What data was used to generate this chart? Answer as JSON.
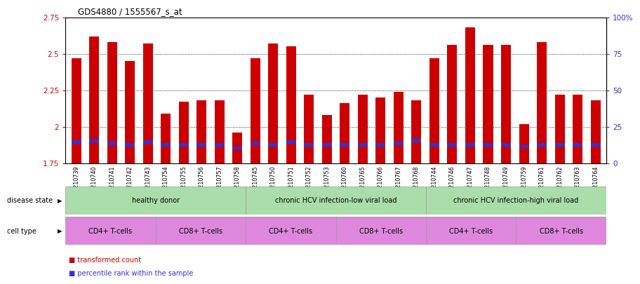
{
  "title": "GDS4880 / 1555567_s_at",
  "samples": [
    "GSM1210739",
    "GSM1210740",
    "GSM1210741",
    "GSM1210742",
    "GSM1210743",
    "GSM1210754",
    "GSM1210755",
    "GSM1210756",
    "GSM1210757",
    "GSM1210758",
    "GSM1210745",
    "GSM1210750",
    "GSM1210751",
    "GSM1210752",
    "GSM1210753",
    "GSM1210760",
    "GSM1210765",
    "GSM1210766",
    "GSM1210767",
    "GSM1210768",
    "GSM1210744",
    "GSM1210746",
    "GSM1210747",
    "GSM1210748",
    "GSM1210749",
    "GSM1210759",
    "GSM1210761",
    "GSM1210762",
    "GSM1210763",
    "GSM1210764"
  ],
  "red_values": [
    2.47,
    2.62,
    2.58,
    2.45,
    2.57,
    2.09,
    2.17,
    2.18,
    2.18,
    1.96,
    2.47,
    2.57,
    2.55,
    2.22,
    2.08,
    2.16,
    2.22,
    2.2,
    2.24,
    2.18,
    2.47,
    2.56,
    2.68,
    2.56,
    2.56,
    2.02,
    2.58,
    2.22,
    2.22,
    2.18
  ],
  "blue_values": [
    1.895,
    1.905,
    1.885,
    1.875,
    1.895,
    1.875,
    1.875,
    1.875,
    1.875,
    1.855,
    1.885,
    1.875,
    1.895,
    1.875,
    1.875,
    1.875,
    1.875,
    1.875,
    1.885,
    1.905,
    1.875,
    1.875,
    1.875,
    1.875,
    1.875,
    1.865,
    1.875,
    1.875,
    1.875,
    1.875
  ],
  "ylim": [
    1.75,
    2.75
  ],
  "yticks_left": [
    1.75,
    2.0,
    2.25,
    2.5,
    2.75
  ],
  "yticks_right": [
    0,
    25,
    50,
    75,
    100
  ],
  "yticklabels_right": [
    "0",
    "25",
    "50",
    "75",
    "100%"
  ],
  "grid_lines": [
    2.0,
    2.25,
    2.5
  ],
  "bar_color": "#CC0000",
  "blue_color": "#3333CC",
  "bg_color": "#FFFFFF",
  "plot_bg": "#FFFFFF",
  "left_axis_color": "#CC0000",
  "right_axis_color": "#3333CC",
  "green_color": "#AADDAA",
  "purple_color": "#DD88DD",
  "ds_groups": [
    {
      "label": "healthy donor",
      "start": 0,
      "end": 10
    },
    {
      "label": "chronic HCV infection-low viral load",
      "start": 10,
      "end": 20
    },
    {
      "label": "chronic HCV infection-high viral load",
      "start": 20,
      "end": 30
    }
  ],
  "ct_groups": [
    {
      "label": "CD4+ T-cells",
      "start": 0,
      "end": 5
    },
    {
      "label": "CD8+ T-cells",
      "start": 5,
      "end": 10
    },
    {
      "label": "CD4+ T-cells",
      "start": 10,
      "end": 15
    },
    {
      "label": "CD8+ T-cells",
      "start": 15,
      "end": 20
    },
    {
      "label": "CD4+ T-cells",
      "start": 20,
      "end": 25
    },
    {
      "label": "CD8+ T-cells",
      "start": 25,
      "end": 30
    }
  ],
  "disease_state_label": "disease state",
  "cell_type_label": "cell type",
  "legend_red": "transformed count",
  "legend_blue": "percentile rank within the sample",
  "bar_width": 0.55
}
